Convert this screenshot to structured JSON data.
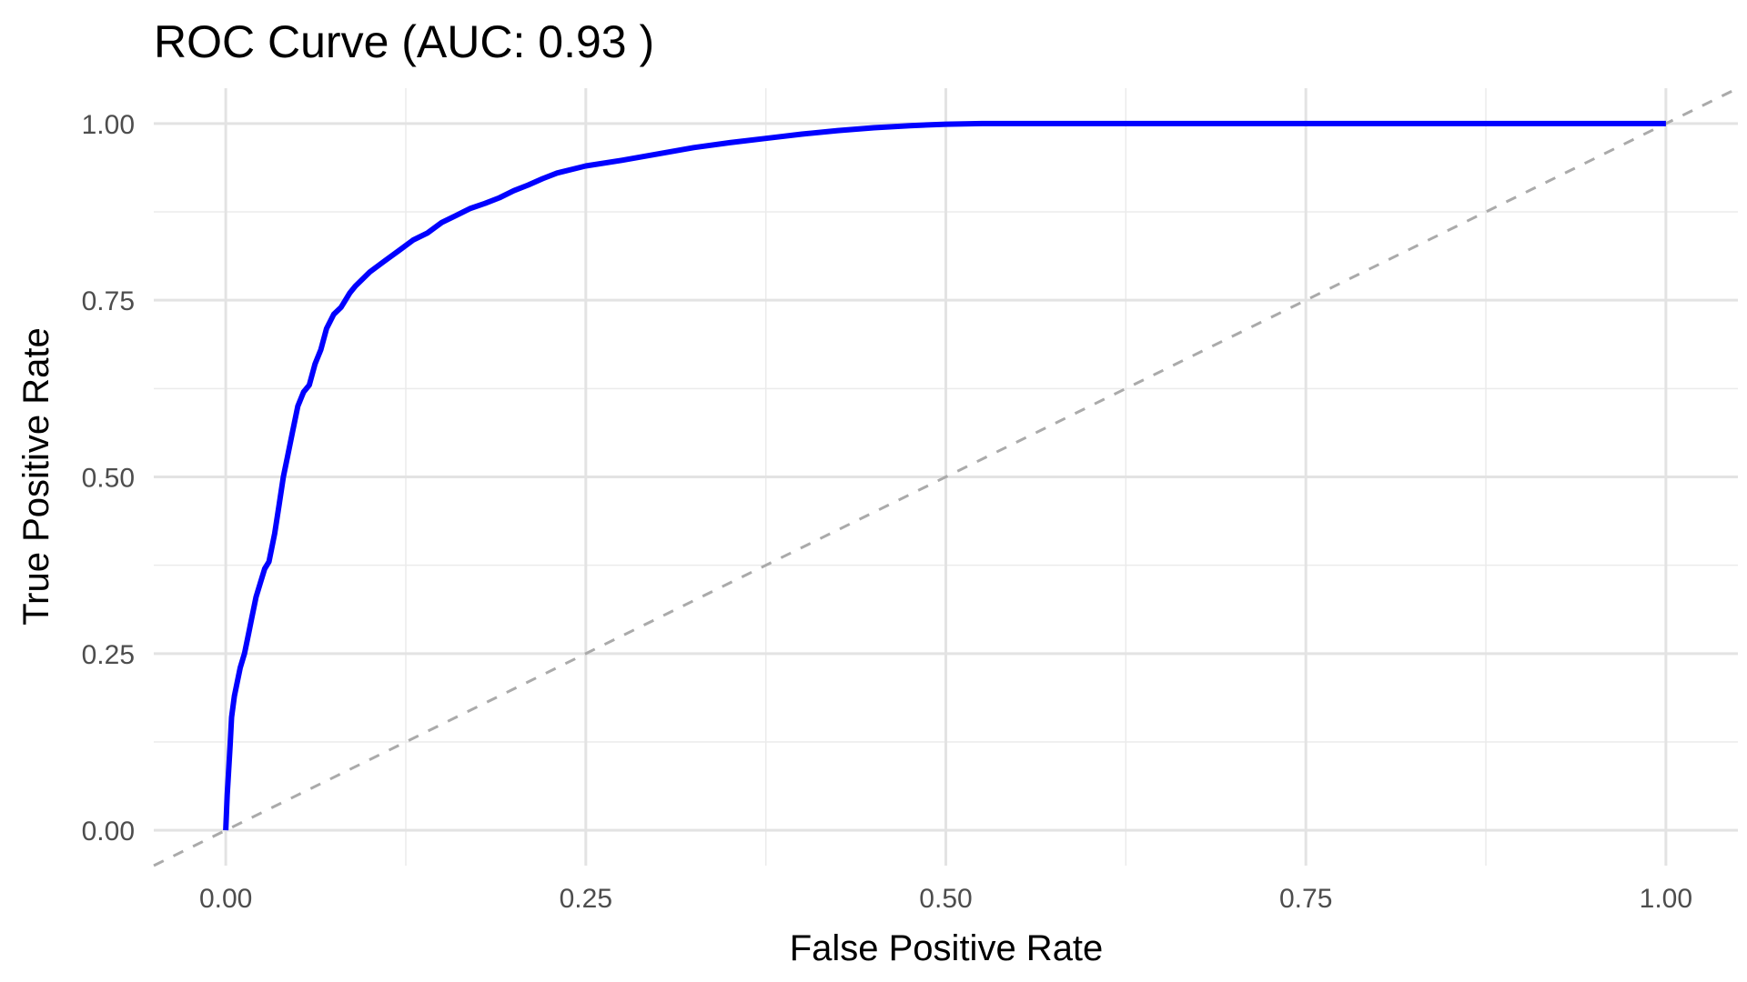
{
  "chart_data": {
    "type": "line",
    "title": "ROC Curve (AUC: 0.93 )",
    "xlabel": "False Positive Rate",
    "ylabel": "True Positive Rate",
    "xlim": [
      -0.05,
      1.05
    ],
    "ylim": [
      -0.05,
      1.05
    ],
    "x_ticks": [
      0.0,
      0.25,
      0.5,
      0.75,
      1.0
    ],
    "x_tick_labels": [
      "0.00",
      "0.25",
      "0.50",
      "0.75",
      "1.00"
    ],
    "y_ticks": [
      0.0,
      0.25,
      0.5,
      0.75,
      1.0
    ],
    "y_tick_labels": [
      "0.00",
      "0.25",
      "0.50",
      "0.75",
      "1.00"
    ],
    "grid": true,
    "legend": "none",
    "series": [
      {
        "color": "#0000ff",
        "style": "solid",
        "x": [
          0.0,
          0.001,
          0.003,
          0.004,
          0.006,
          0.008,
          0.01,
          0.013,
          0.016,
          0.018,
          0.021,
          0.024,
          0.027,
          0.03,
          0.034,
          0.037,
          0.04,
          0.043,
          0.046,
          0.05,
          0.054,
          0.058,
          0.062,
          0.066,
          0.07,
          0.075,
          0.08,
          0.086,
          0.09,
          0.095,
          0.1,
          0.11,
          0.12,
          0.13,
          0.14,
          0.15,
          0.16,
          0.17,
          0.18,
          0.19,
          0.2,
          0.21,
          0.22,
          0.23,
          0.25,
          0.275,
          0.3,
          0.325,
          0.35,
          0.375,
          0.4,
          0.425,
          0.45,
          0.475,
          0.5,
          0.525,
          0.55,
          0.6,
          0.7,
          0.8,
          0.9,
          1.0
        ],
        "y": [
          0.0,
          0.05,
          0.12,
          0.16,
          0.19,
          0.21,
          0.23,
          0.25,
          0.28,
          0.3,
          0.33,
          0.35,
          0.37,
          0.38,
          0.42,
          0.46,
          0.5,
          0.53,
          0.56,
          0.6,
          0.62,
          0.63,
          0.66,
          0.68,
          0.71,
          0.73,
          0.74,
          0.76,
          0.77,
          0.78,
          0.79,
          0.805,
          0.82,
          0.835,
          0.845,
          0.86,
          0.87,
          0.88,
          0.887,
          0.895,
          0.905,
          0.913,
          0.922,
          0.93,
          0.94,
          0.948,
          0.957,
          0.966,
          0.973,
          0.979,
          0.985,
          0.99,
          0.994,
          0.997,
          0.999,
          1.0,
          1.0,
          1.0,
          1.0,
          1.0,
          1.0,
          1.0
        ]
      },
      {
        "color": "#aaaaaa",
        "style": "dashed",
        "x": [
          -0.05,
          1.05
        ],
        "y": [
          -0.05,
          1.05
        ]
      }
    ]
  }
}
